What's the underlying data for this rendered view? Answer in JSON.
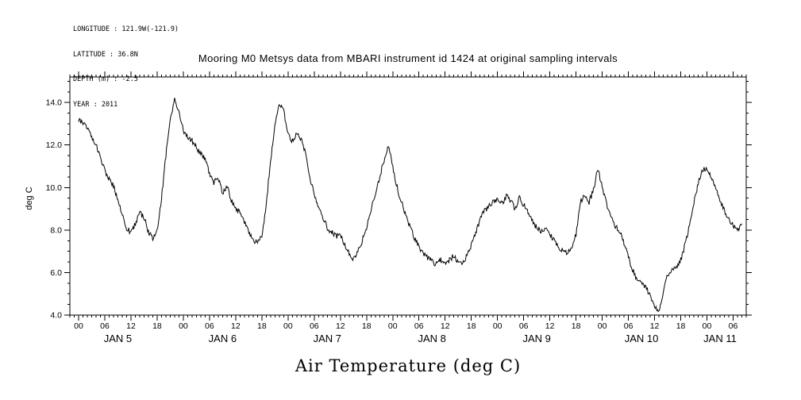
{
  "header": {
    "info_lines": [
      "LONGITUDE : 121.9W(-121.9)",
      "LATITUDE : 36.8N",
      "DEPTH (m) : -2.5",
      "YEAR : 2011"
    ],
    "title": "Mooring M0 Metsys data from MBARI instrument id 1424 at original sampling intervals"
  },
  "chart_data": {
    "type": "line",
    "title": "Mooring M0 Metsys data from MBARI instrument id 1424 at original sampling intervals",
    "ylabel": "deg C",
    "xlabel_bottom": "Air Temperature (deg C)",
    "line_color": "#000000",
    "ylim": [
      4.0,
      15.2
    ],
    "y_major_tick_values": [
      4,
      6,
      8,
      10,
      12,
      14
    ],
    "y_tick_labels": [
      "4.0",
      "6.0",
      "8.0",
      "10.0",
      "12.0",
      "14.0"
    ],
    "y_minor_step": 0.5,
    "x_axis": {
      "t_min_hours": -2,
      "t_max_hours": 153,
      "major_step_hours": 6,
      "minor_step_hours": 1,
      "labeled_range_hours": [
        0,
        150
      ],
      "hour_tick_labels": [
        "00",
        "06",
        "12",
        "18"
      ],
      "day_labels": [
        "JAN 5",
        "JAN 6",
        "JAN 7",
        "JAN 8",
        "JAN 9",
        "JAN 10",
        "JAN 11"
      ]
    },
    "series": [
      {
        "name": "Air Temperature (deg C)",
        "start_hour": 0,
        "step_hours": 1,
        "values": [
          13.2,
          13.0,
          12.8,
          12.4,
          12.0,
          11.4,
          10.8,
          10.4,
          10.1,
          9.4,
          8.7,
          8.1,
          7.9,
          8.3,
          8.8,
          8.6,
          7.9,
          7.6,
          8.0,
          9.5,
          11.5,
          13.2,
          14.2,
          13.5,
          12.7,
          12.4,
          12.2,
          11.9,
          11.6,
          11.3,
          10.7,
          10.2,
          10.5,
          9.7,
          10.1,
          9.4,
          9.0,
          8.8,
          8.4,
          7.9,
          7.5,
          7.4,
          7.7,
          9.2,
          11.3,
          12.9,
          13.9,
          13.6,
          12.5,
          12.2,
          12.5,
          12.3,
          11.6,
          10.5,
          9.7,
          9.1,
          8.6,
          8.1,
          7.9,
          7.7,
          7.8,
          7.3,
          6.9,
          6.6,
          7.0,
          7.5,
          8.1,
          8.9,
          9.7,
          10.5,
          11.3,
          12.0,
          11.0,
          10.0,
          9.3,
          8.7,
          8.1,
          7.6,
          7.2,
          6.9,
          6.7,
          6.5,
          6.4,
          6.6,
          6.4,
          6.6,
          6.8,
          6.5,
          6.4,
          6.8,
          7.3,
          7.9,
          8.5,
          8.9,
          9.1,
          9.3,
          9.5,
          9.2,
          9.6,
          9.4,
          9.0,
          9.5,
          9.2,
          8.8,
          8.4,
          8.1,
          7.9,
          8.1,
          7.8,
          7.5,
          7.2,
          7.0,
          6.9,
          7.2,
          7.8,
          9.3,
          9.7,
          9.3,
          9.9,
          10.9,
          10.0,
          9.2,
          8.6,
          8.2,
          7.9,
          7.4,
          6.7,
          6.1,
          5.7,
          5.5,
          5.3,
          4.9,
          4.4,
          4.1,
          5.1,
          5.9,
          6.1,
          6.3,
          6.6,
          7.3,
          8.2,
          9.3,
          10.2,
          10.8,
          10.9,
          10.5,
          10.0,
          9.4,
          8.9,
          8.5,
          8.2,
          8.0,
          8.3
        ]
      }
    ]
  }
}
